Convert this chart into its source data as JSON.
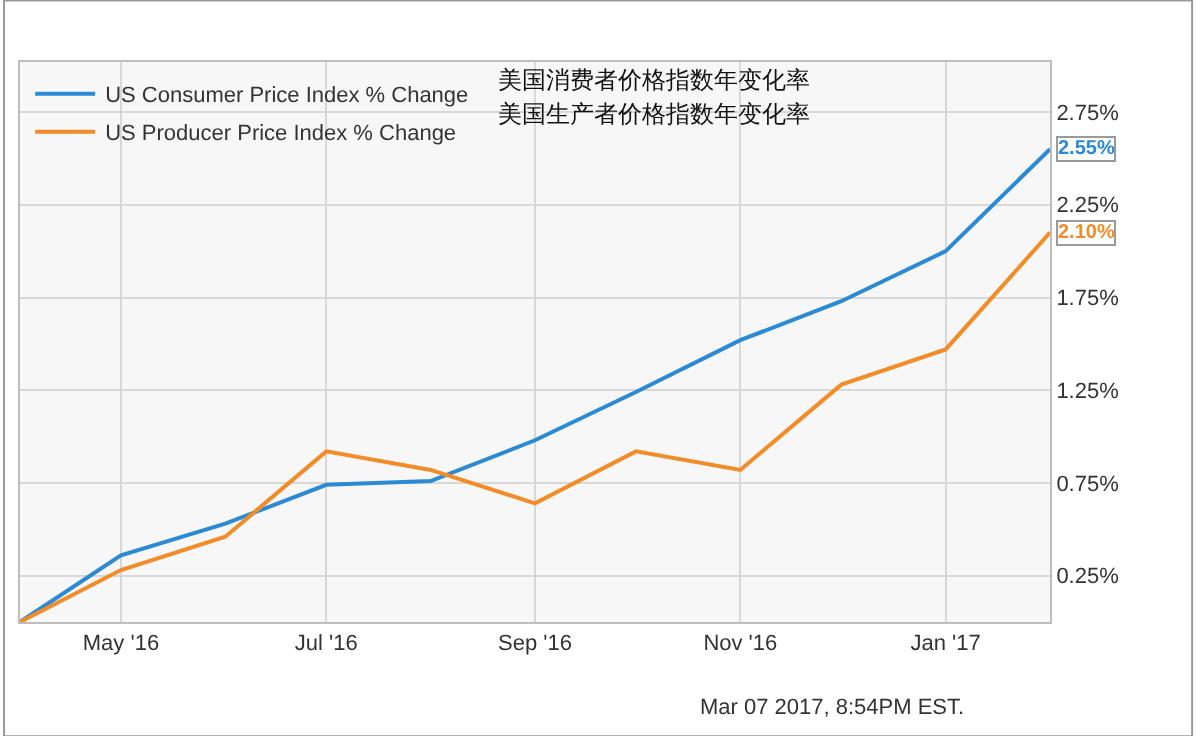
{
  "chart_data": {
    "type": "line",
    "x": [
      "2016-04",
      "2016-05",
      "2016-06",
      "2016-07",
      "2016-08",
      "2016-09",
      "2016-10",
      "2016-11",
      "2016-12",
      "2017-01",
      "2017-02"
    ],
    "series": [
      {
        "name": "US Consumer Price Index % Change",
        "color": "#2b8ad3",
        "values": [
          0,
          0.36,
          0.53,
          0.74,
          0.76,
          0.98,
          1.24,
          1.52,
          1.73,
          2.0,
          2.55
        ],
        "value_labels": [
          null,
          null,
          null,
          null,
          null,
          null,
          null,
          null,
          null,
          null,
          "2.55%"
        ]
      },
      {
        "name": "US Producer Price Index % Change",
        "color": "#f28c28",
        "values": [
          0,
          0.28,
          0.46,
          0.92,
          0.82,
          0.64,
          0.92,
          0.82,
          1.28,
          1.47,
          2.1
        ],
        "value_labels": [
          null,
          null,
          null,
          null,
          null,
          null,
          null,
          null,
          null,
          null,
          "2.10%"
        ]
      }
    ],
    "xlim": [
      "2016-04",
      "2017-02"
    ],
    "xticks": [
      {
        "value": "2016-05",
        "label": "May '16"
      },
      {
        "value": "2016-07",
        "label": "Jul '16"
      },
      {
        "value": "2016-09",
        "label": "Sep '16"
      },
      {
        "value": "2016-11",
        "label": "Nov '16"
      },
      {
        "value": "2017-01",
        "label": "Jan '17"
      }
    ],
    "ylim": [
      0,
      3.02
    ],
    "yticks": [
      {
        "value": 0.25,
        "label": "0.25%"
      },
      {
        "value": 0.75,
        "label": "0.75%"
      },
      {
        "value": 1.25,
        "label": "1.25%"
      },
      {
        "value": 1.75,
        "label": "1.75%"
      },
      {
        "value": 2.25,
        "label": "2.25%"
      },
      {
        "value": 2.75,
        "label": "2.75%"
      }
    ],
    "grid": true,
    "legend": "top left",
    "marker": "none",
    "line_style": "solid",
    "annotations": [
      "美国消费者价格指数年变化率",
      "美国生产者价格指数年变化率",
      "Mar 07 2017, 8:54PM EST."
    ]
  }
}
